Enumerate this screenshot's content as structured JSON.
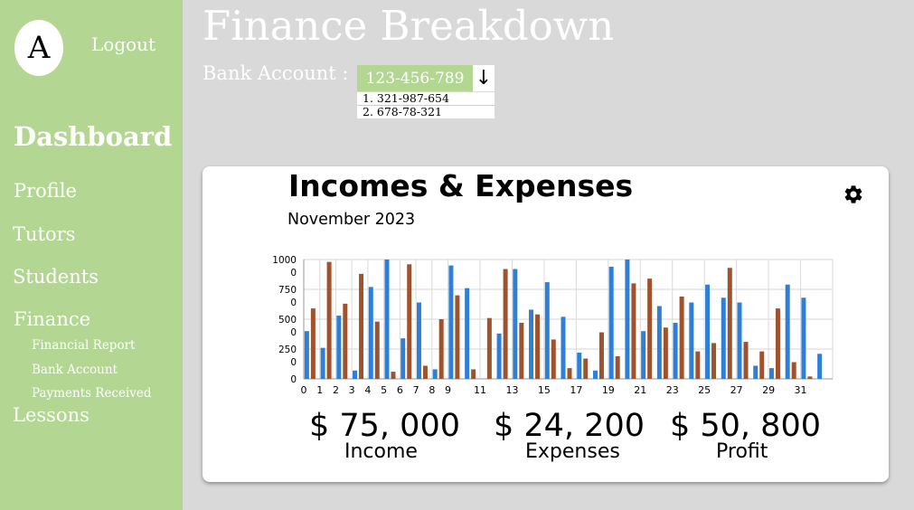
{
  "sidebar": {
    "avatar_letter": "A",
    "logout_label": "Logout",
    "dashboard_label": "Dashboard",
    "items": [
      {
        "label": "Profile"
      },
      {
        "label": "Tutors"
      },
      {
        "label": "Students"
      },
      {
        "label": "Finance"
      }
    ],
    "finance_subitems": [
      {
        "label": "Financial Report"
      },
      {
        "label": "Bank Account"
      },
      {
        "label": "Payments Received"
      }
    ],
    "lessons_label": "Lessons"
  },
  "header": {
    "title": "Finance Breakdown",
    "bank_label": "Bank Account :",
    "bank_selected": "123-456-789",
    "bank_options": [
      "1.  321-987-654",
      "2.  678-78-321"
    ]
  },
  "card": {
    "title": "Incomes & Expenses",
    "subtitle": "November 2023",
    "settings_icon": "gear-icon"
  },
  "chart_data": {
    "type": "bar",
    "ylim": [
      0,
      1000
    ],
    "y_tick_labels": [
      [
        "0"
      ],
      [
        "250",
        "0"
      ],
      [
        "500",
        "0"
      ],
      [
        "750",
        "0"
      ],
      [
        "1000",
        "0"
      ]
    ],
    "x_tick_labels": [
      "0",
      "1",
      "2",
      "3",
      "4",
      "5",
      "6",
      "7",
      "8",
      "9",
      "11",
      "13",
      "15",
      "17",
      "19",
      "21",
      "23",
      "25",
      "27",
      "29",
      "31"
    ],
    "x_tick_days": [
      0,
      1,
      2,
      3,
      4,
      5,
      6,
      7,
      8,
      9,
      11,
      13,
      15,
      17,
      19,
      21,
      23,
      25,
      27,
      29,
      31
    ],
    "grid": true,
    "colors": {
      "series1": "#2f7fd6",
      "series2": "#a0522d"
    },
    "series": [
      {
        "values": [
          400,
          260,
          530,
          70,
          770,
          1000,
          340,
          640,
          80,
          950,
          760,
          0,
          380,
          920,
          580,
          810,
          520,
          220,
          70,
          940,
          1000,
          400,
          610,
          470,
          640,
          790,
          680,
          640,
          110,
          90,
          790,
          680,
          210
        ]
      },
      {
        "values": [
          590,
          980,
          630,
          880,
          480,
          60,
          960,
          110,
          500,
          700,
          80,
          510,
          920,
          470,
          540,
          330,
          90,
          170,
          390,
          190,
          800,
          840,
          430,
          690,
          230,
          300,
          930,
          310,
          230,
          590,
          140,
          20,
          0
        ]
      }
    ]
  },
  "stats": [
    {
      "value": "$ 75, 000",
      "label": "Income"
    },
    {
      "value": "$ 24, 200",
      "label": "Expenses"
    },
    {
      "value": "$ 50, 800",
      "label": "Profit"
    }
  ]
}
